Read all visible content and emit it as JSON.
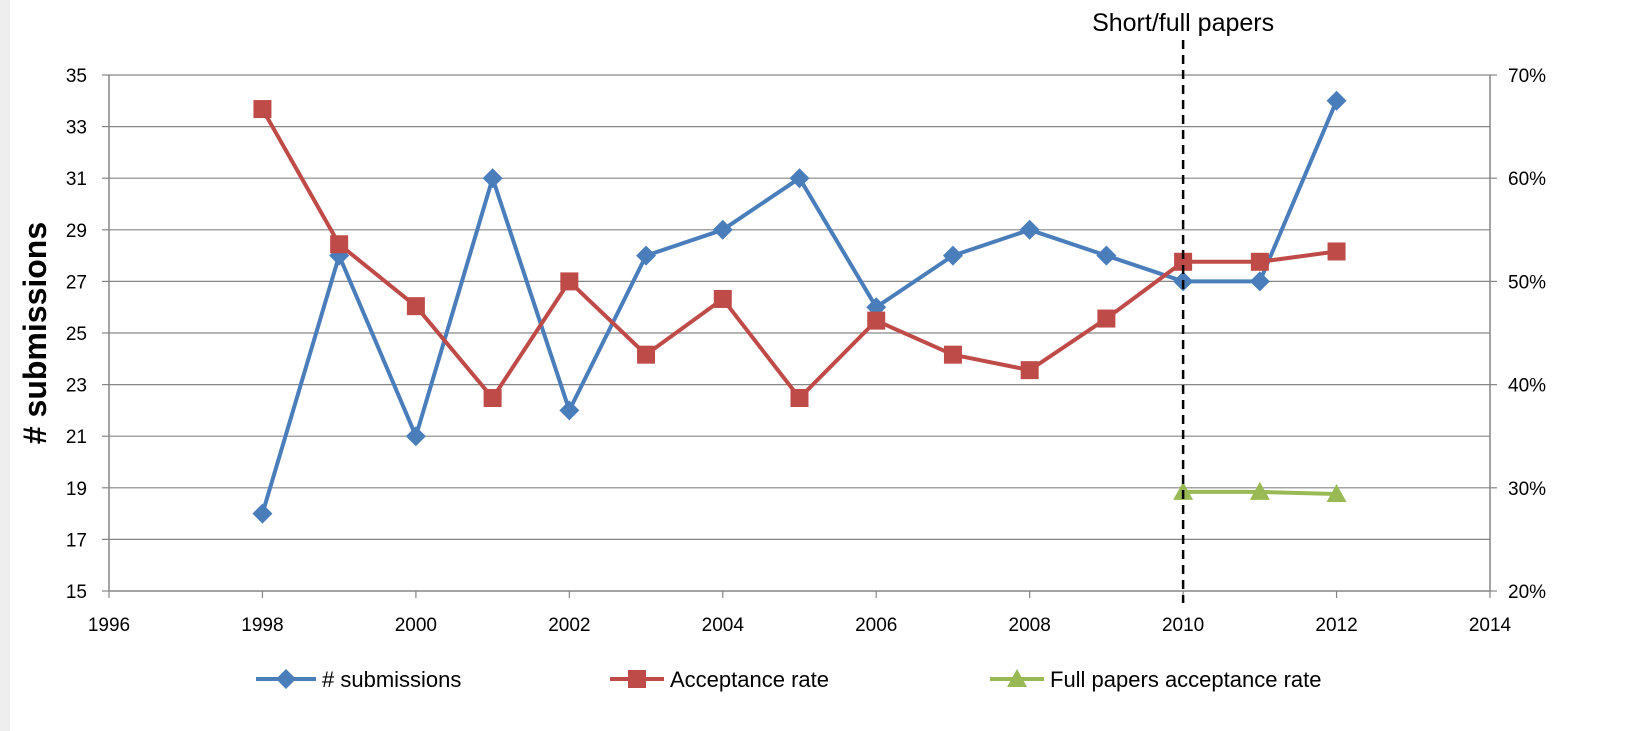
{
  "chart_data": {
    "type": "line",
    "title": "",
    "ylabel": "# submissions",
    "xlabel": "",
    "annotation": "Short/full papers",
    "annotation_x": 2010,
    "xlim": [
      1996,
      2014
    ],
    "x_ticks": [
      1996,
      1998,
      2000,
      2002,
      2004,
      2006,
      2008,
      2010,
      2012,
      2014
    ],
    "ylim": [
      15,
      35
    ],
    "y_ticks": [
      15,
      17,
      19,
      21,
      23,
      25,
      27,
      29,
      31,
      33,
      35
    ],
    "y2lim": [
      0.2,
      0.7
    ],
    "y2_ticks": [
      "20%",
      "30%",
      "40%",
      "50%",
      "60%",
      "70%"
    ],
    "y2_tick_values": [
      0.2,
      0.3,
      0.4,
      0.5,
      0.6,
      0.7
    ],
    "grid": "horizontal",
    "legend_position": "bottom",
    "series": [
      {
        "name": "# submissions",
        "axis": "left",
        "color": "#4a7ebb",
        "marker": "diamond",
        "x": [
          1998,
          1999,
          2000,
          2001,
          2002,
          2003,
          2004,
          2005,
          2006,
          2007,
          2008,
          2009,
          2010,
          2011,
          2012
        ],
        "values": [
          18,
          28,
          21,
          31,
          22,
          28,
          29,
          31,
          26,
          28,
          29,
          28,
          27,
          27,
          34
        ]
      },
      {
        "name": "Acceptance rate",
        "axis": "right",
        "color": "#be4b48",
        "marker": "square",
        "x": [
          1998,
          1999,
          2000,
          2001,
          2002,
          2003,
          2004,
          2005,
          2006,
          2007,
          2008,
          2009,
          2010,
          2011,
          2012
        ],
        "values": [
          0.667,
          0.536,
          0.476,
          0.387,
          0.5,
          0.429,
          0.483,
          0.387,
          0.462,
          0.429,
          0.414,
          0.464,
          0.519,
          0.519,
          0.529
        ]
      },
      {
        "name": "Full papers acceptance rate",
        "axis": "right",
        "color": "#98b954",
        "marker": "triangle",
        "x": [
          2010,
          2011,
          2012
        ],
        "values": [
          0.296,
          0.296,
          0.294
        ]
      }
    ]
  }
}
